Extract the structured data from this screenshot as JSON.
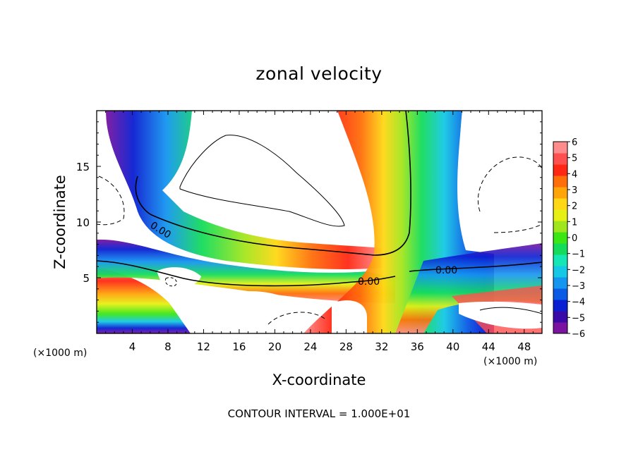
{
  "chart_data": {
    "type": "heatmap",
    "title": "zonal velocity",
    "xlabel": "X-coordinate",
    "ylabel": "Z-coordinate",
    "x_unit_left": "(×1000 m)",
    "x_unit_right": "(×1000 m)",
    "footer": "CONTOUR INTERVAL = 1.000E+01",
    "xlim": [
      0,
      50
    ],
    "ylim": [
      0,
      20
    ],
    "x_ticks": [
      "4",
      "8",
      "12",
      "16",
      "20",
      "24",
      "28",
      "32",
      "36",
      "40",
      "44",
      "48"
    ],
    "x_tick_values": [
      4,
      8,
      12,
      16,
      20,
      24,
      28,
      32,
      36,
      40,
      44,
      48
    ],
    "y_ticks": [
      "5",
      "10",
      "15"
    ],
    "y_tick_values": [
      5,
      10,
      15
    ],
    "colorbar": {
      "range": [
        -6,
        6
      ],
      "tick_labels": [
        "6",
        "5",
        "4",
        "3",
        "2",
        "1",
        "0",
        "−1",
        "−2",
        "−3",
        "−4",
        "−5",
        "−6"
      ],
      "colors": [
        "#7a14a0",
        "#3a0aa8",
        "#0a1ed2",
        "#0a5ae6",
        "#1496f0",
        "#14c8e6",
        "#14e6b4",
        "#14dc5a",
        "#3ce614",
        "#a0e61e",
        "#e6f014",
        "#ffd714",
        "#ffa50a",
        "#ff6e0a",
        "#ff2814",
        "#ff5050",
        "#ff8c8c"
      ]
    },
    "contour_labels": [
      "0.00",
      "0.00",
      "0.00"
    ],
    "grid": false,
    "legend": "colorbar-right"
  }
}
